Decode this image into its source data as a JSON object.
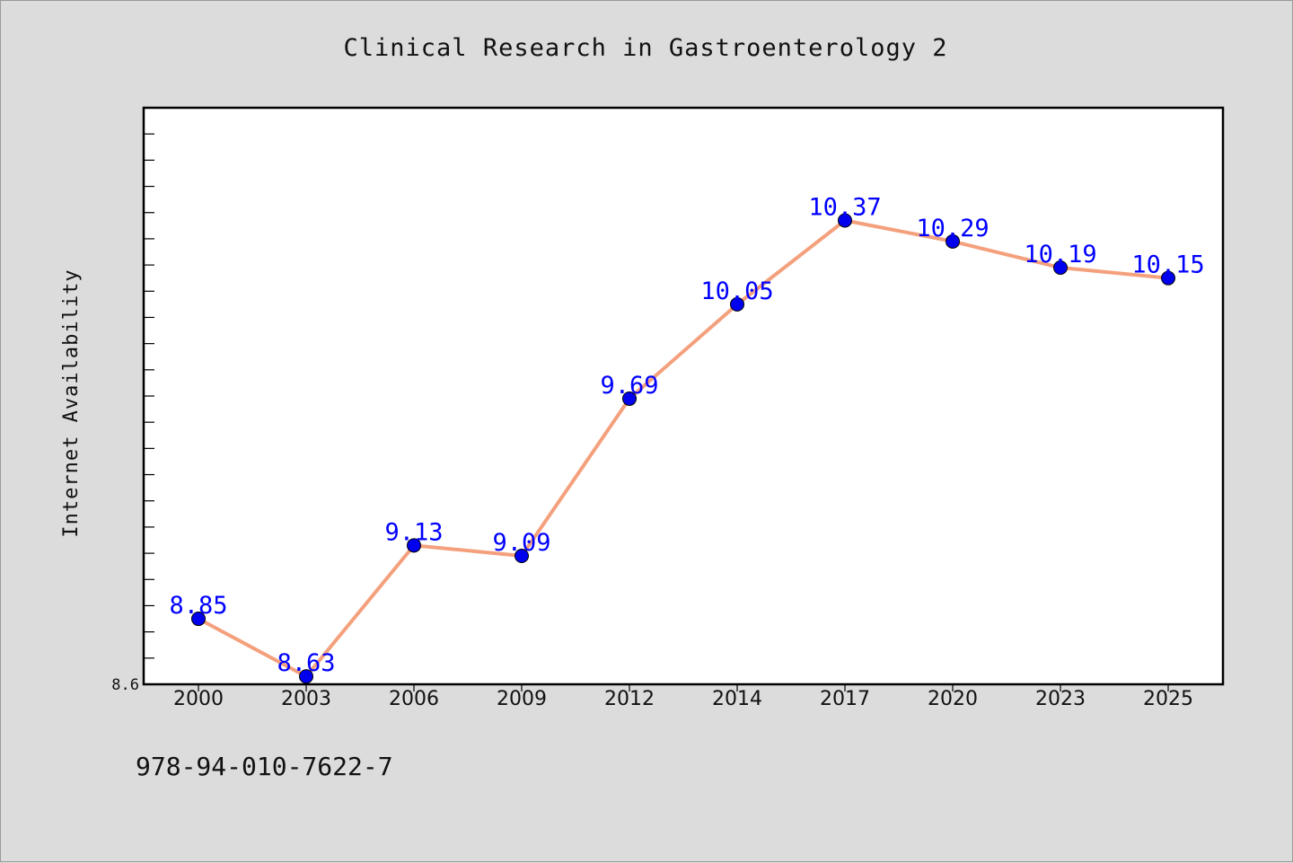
{
  "chart_data": {
    "type": "line",
    "title": "Clinical Research in Gastroenterology 2",
    "xlabel": "",
    "ylabel": "Internet Availability",
    "categories": [
      "2000",
      "2003",
      "2006",
      "2009",
      "2012",
      "2014",
      "2017",
      "2020",
      "2023",
      "2025"
    ],
    "series": [
      {
        "values": [
          8.85,
          8.63,
          9.13,
          9.09,
          9.69,
          10.05,
          10.37,
          10.29,
          10.19,
          10.15
        ],
        "line_color": "#f4a07c",
        "marker_color": "#0000ee"
      }
    ],
    "data_labels": [
      "8.85",
      "8.63",
      "9.13",
      "9.09",
      "9.69",
      "10.05",
      "10.37",
      "10.29",
      "10.19",
      "10.15"
    ],
    "y_tick_labels": [
      "8.6"
    ],
    "ylim": [
      8.6,
      10.8
    ],
    "grid": false,
    "legend": "none"
  },
  "footer": {
    "isbn": "978-94-010-7622-7"
  },
  "colors": {
    "background": "#dcdcdc",
    "plot_area": "#ffffff",
    "label_color": "#0000ff"
  }
}
